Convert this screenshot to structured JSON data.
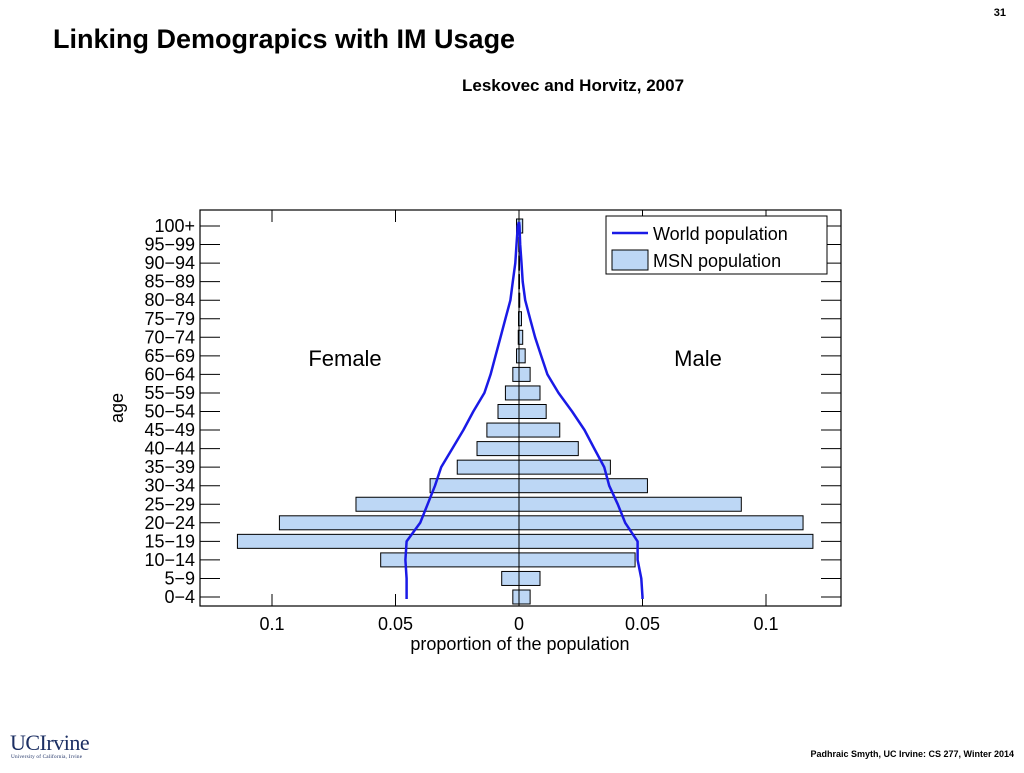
{
  "slide": {
    "title": "Linking Demograpics with IM Usage",
    "citation": "Leskovec and Horvitz, 2007",
    "page_number": "31",
    "footer": "Padhraic Smyth, UC Irvine: CS 277, Winter 2014",
    "logo_text": "UCIrvine",
    "logo_subtext": "University of California, Irvine"
  },
  "chart_data": {
    "type": "bar",
    "subtype": "population-pyramid",
    "categories": [
      "0−4",
      "5−9",
      "10−14",
      "15−19",
      "20−24",
      "25−29",
      "30−34",
      "35−39",
      "40−44",
      "45−49",
      "50−54",
      "55−59",
      "60−64",
      "65−69",
      "70−74",
      "75−79",
      "80−84",
      "85−89",
      "90−94",
      "95−99",
      "100+"
    ],
    "xlabel": "proportion of the population",
    "ylabel": "age",
    "xlim": [
      -0.13,
      0.13
    ],
    "xticks": [
      -0.1,
      -0.05,
      0,
      0.05,
      0.1
    ],
    "xtick_labels": [
      "0.1",
      "0.05",
      "0",
      "0.05",
      "0.1"
    ],
    "side_labels": {
      "left": "Female",
      "right": "Male"
    },
    "legend": {
      "position": "top-right",
      "line_label": "World population",
      "bar_label": "MSN population"
    },
    "colors": {
      "bar_fill": "#bdd7f5",
      "bar_stroke": "#000000",
      "line": "#1a1ae6"
    },
    "msn_female": [
      0.0025,
      0.007,
      0.056,
      0.114,
      0.097,
      0.066,
      0.036,
      0.025,
      0.017,
      0.013,
      0.0085,
      0.0055,
      0.0025,
      0.001,
      0.0003,
      0.0002,
      0.0001,
      0.0001,
      0.0001,
      0.0001,
      0.001
    ],
    "msn_male": [
      0.0045,
      0.0085,
      0.047,
      0.119,
      0.115,
      0.09,
      0.052,
      0.037,
      0.024,
      0.0165,
      0.011,
      0.0085,
      0.0045,
      0.0025,
      0.0015,
      0.001,
      0.0003,
      0.0002,
      0.0001,
      0.0001,
      0.0015
    ],
    "world_female": [
      0.0455,
      0.0455,
      0.046,
      0.0455,
      0.04,
      0.037,
      0.034,
      0.0315,
      0.027,
      0.0225,
      0.0185,
      0.014,
      0.0115,
      0.0095,
      0.0075,
      0.0055,
      0.0035,
      0.0025,
      0.0015,
      0.001,
      0.0005
    ],
    "world_male": [
      0.05,
      0.0495,
      0.048,
      0.048,
      0.043,
      0.04,
      0.0365,
      0.0345,
      0.0305,
      0.0265,
      0.0215,
      0.016,
      0.0115,
      0.009,
      0.0065,
      0.0045,
      0.0025,
      0.0015,
      0.001,
      0.0005,
      0.0002
    ]
  }
}
